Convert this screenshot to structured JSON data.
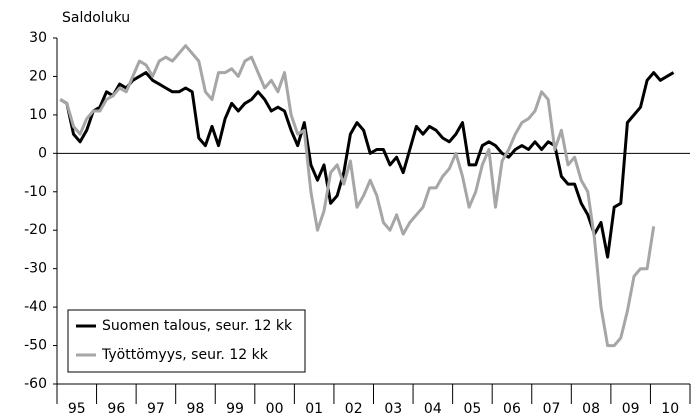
{
  "chart_data": {
    "type": "line",
    "y_label": "Saldoluku",
    "categories": [
      null,
      null,
      null,
      "95",
      null,
      null,
      null,
      null,
      null,
      "96",
      null,
      null,
      null,
      null,
      null,
      "97",
      null,
      null,
      null,
      null,
      null,
      "98",
      null,
      null,
      null,
      null,
      null,
      "99",
      null,
      null,
      null,
      null,
      null,
      "00",
      null,
      null,
      null,
      null,
      null,
      "01",
      null,
      null,
      null,
      null,
      null,
      "02",
      null,
      null,
      null,
      null,
      null,
      "03",
      null,
      null,
      null,
      null,
      null,
      "04",
      null,
      null,
      null,
      null,
      null,
      "05",
      null,
      null,
      null,
      null,
      null,
      "06",
      null,
      null,
      null,
      null,
      null,
      "07",
      null,
      null,
      null,
      null,
      null,
      "08",
      null,
      null,
      null,
      null,
      null,
      "09",
      null,
      null,
      null,
      null,
      null,
      "10",
      null,
      null
    ],
    "series": [
      {
        "name": "Suomen talous, seur. 12 kk",
        "color": "#000000",
        "values": [
          14,
          13,
          5,
          3,
          6,
          11,
          12,
          16,
          15,
          18,
          17,
          19,
          20,
          21,
          19,
          18,
          17,
          16,
          16,
          17,
          16,
          4,
          2,
          7,
          2,
          9,
          13,
          11,
          13,
          14,
          16,
          14,
          11,
          12,
          11,
          6,
          2,
          8,
          -3,
          -7,
          -3,
          -13,
          -11,
          -5,
          5,
          8,
          6,
          0,
          1,
          1,
          -3,
          -1,
          -5,
          1,
          7,
          5,
          7,
          6,
          4,
          3,
          5,
          8,
          -3,
          -3,
          2,
          3,
          2,
          0,
          -1,
          1,
          2,
          1,
          3,
          1,
          3,
          2,
          -6,
          -8,
          -8,
          -13,
          -16,
          -21,
          -18,
          -27,
          -14,
          -13,
          8,
          10,
          12,
          19,
          21,
          19,
          20,
          21,
          null,
          null
        ]
      },
      {
        "name": "Työttömyys, seur. 12 kk",
        "color": "#a6a6a6",
        "values": [
          14,
          13,
          7,
          5,
          9,
          11,
          11,
          14,
          15,
          17,
          16,
          20,
          24,
          23,
          20,
          24,
          25,
          24,
          26,
          28,
          26,
          24,
          16,
          14,
          21,
          21,
          22,
          20,
          24,
          25,
          21,
          17,
          19,
          16,
          21,
          10,
          5,
          6,
          -10,
          -20,
          -15,
          -5,
          -3,
          -8,
          -2,
          -14,
          -11,
          -7,
          -11,
          -18,
          -20,
          -16,
          -21,
          -18,
          -16,
          -14,
          -9,
          -9,
          -6,
          -4,
          0,
          -6,
          -14,
          -10,
          -3,
          1,
          -14,
          -2,
          1,
          5,
          8,
          9,
          11,
          16,
          14,
          1,
          6,
          -3,
          -1,
          -7,
          -10,
          -22,
          -40,
          -50,
          -50,
          -48,
          -41,
          -32,
          -30,
          -30,
          -19,
          null,
          null,
          null,
          null,
          null
        ]
      }
    ],
    "ylim": [
      -60,
      30
    ],
    "yticks": [
      -60,
      -50,
      -40,
      -30,
      -20,
      -10,
      0,
      10,
      20,
      30
    ],
    "legend": "lower left"
  }
}
